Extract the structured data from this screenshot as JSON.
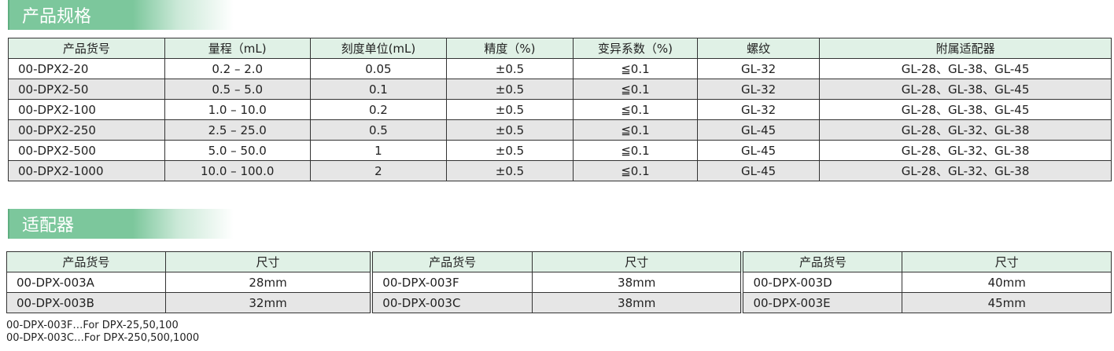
{
  "specs": {
    "title": "产品规格",
    "headers": [
      "产品货号",
      "量程（mL)",
      "刻度单位(mL)",
      "精度（%)",
      "变异系数（%)",
      "螺纹",
      "附属适配器"
    ],
    "rows": [
      [
        "00-DPX2-20",
        "0.2 – 2.0",
        "0.05",
        "±0.5",
        "≦0.1",
        "GL-32",
        "GL-28、GL-38、GL-45"
      ],
      [
        "00-DPX2-50",
        "0.5 – 5.0",
        "0.1",
        "±0.5",
        "≦0.1",
        "GL-32",
        "GL-28、GL-38、GL-45"
      ],
      [
        "00-DPX2-100",
        "1.0 – 10.0",
        "0.2",
        "±0.5",
        "≦0.1",
        "GL-32",
        "GL-28、GL-38、GL-45"
      ],
      [
        "00-DPX2-250",
        "2.5 – 25.0",
        "0.5",
        "±0.5",
        "≦0.1",
        "GL-45",
        "GL-28、GL-32、GL-38"
      ],
      [
        "00-DPX2-500",
        "5.0 – 50.0",
        "1",
        "±0.5",
        "≦0.1",
        "GL-45",
        "GL-28、GL-32、GL-38"
      ],
      [
        "00-DPX2-1000",
        "10.0 – 100.0",
        "2",
        "±0.5",
        "≦0.1",
        "GL-45",
        "GL-28、GL-32、GL-38"
      ]
    ]
  },
  "adapters": {
    "title": "适配器",
    "headers": [
      "产品货号",
      "尺寸",
      "产品货号",
      "尺寸",
      "产品货号",
      "尺寸"
    ],
    "rows": [
      [
        "00-DPX-003A",
        "28mm",
        "00-DPX-003F",
        "38mm",
        "00-DPX-003D",
        "40mm"
      ],
      [
        "00-DPX-003B",
        "32mm",
        "00-DPX-003C",
        "38mm",
        "00-DPX-003E",
        "45mm"
      ]
    ]
  },
  "notes": [
    "00-DPX-003F…For DPX-25,50,100",
    "00-DPX-003C…For DPX-250,500,1000"
  ],
  "colors": {
    "banner": "#7cc79c",
    "header": "#e0f1e6",
    "alt_row": "#e6e6e6"
  }
}
